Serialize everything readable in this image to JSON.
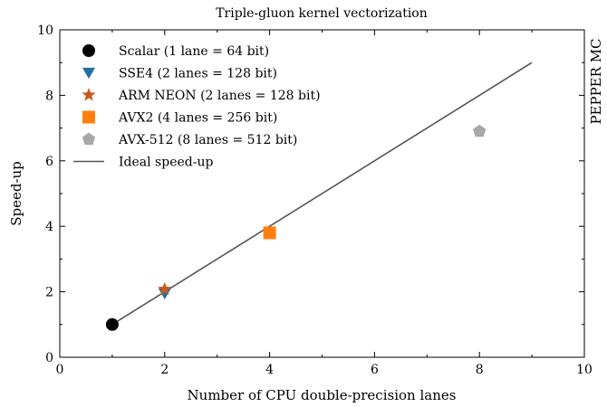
{
  "chart_data": {
    "type": "scatter",
    "title": "Triple-gluon kernel vectorization",
    "xlabel": "Number of CPU double-precision lanes",
    "ylabel": "Speed-up",
    "side_label": "PEPPER MC",
    "xlim": [
      0,
      10
    ],
    "ylim": [
      0,
      10
    ],
    "xticks": [
      0,
      2,
      4,
      6,
      8,
      10
    ],
    "yticks": [
      0,
      2,
      4,
      6,
      8,
      10
    ],
    "grid": false,
    "legend_position": "top-left",
    "series": [
      {
        "name": "Scalar (1 lane = 64 bit)",
        "marker": "circle",
        "color": "#000000",
        "x": [
          1
        ],
        "y": [
          1.0
        ]
      },
      {
        "name": "SSE4 (2 lanes = 128 bit)",
        "marker": "triangle-down",
        "color": "#1f6fa0",
        "x": [
          2
        ],
        "y": [
          1.95
        ]
      },
      {
        "name": "ARM NEON (2 lanes = 128 bit)",
        "marker": "star",
        "color": "#c8591a",
        "x": [
          2
        ],
        "y": [
          2.08
        ]
      },
      {
        "name": "AVX2 (4 lanes = 256 bit)",
        "marker": "square",
        "color": "#ff7f0e",
        "x": [
          4
        ],
        "y": [
          3.8
        ]
      },
      {
        "name": "AVX-512 (8 lanes = 512 bit)",
        "marker": "pentagon",
        "color": "#a8a8a8",
        "x": [
          8
        ],
        "y": [
          6.9
        ]
      }
    ],
    "lines": [
      {
        "name": "Ideal speed-up",
        "color": "#555555",
        "x": [
          1,
          9
        ],
        "y": [
          1,
          9
        ]
      }
    ]
  }
}
